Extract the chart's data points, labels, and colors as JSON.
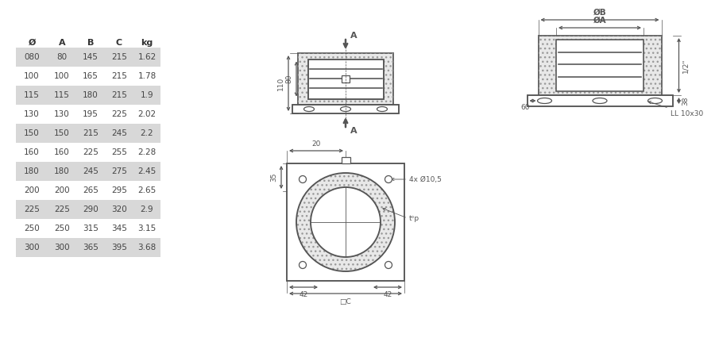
{
  "table": {
    "headers": [
      "Ø",
      "A",
      "B",
      "C",
      "kg"
    ],
    "rows": [
      [
        "080",
        "80",
        "145",
        "215",
        "1.62"
      ],
      [
        "100",
        "100",
        "165",
        "215",
        "1.78"
      ],
      [
        "115",
        "115",
        "180",
        "215",
        "1.9"
      ],
      [
        "130",
        "130",
        "195",
        "225",
        "2.02"
      ],
      [
        "150",
        "150",
        "215",
        "245",
        "2.2"
      ],
      [
        "160",
        "160",
        "225",
        "255",
        "2.28"
      ],
      [
        "180",
        "180",
        "245",
        "275",
        "2.45"
      ],
      [
        "200",
        "200",
        "265",
        "295",
        "2.65"
      ],
      [
        "225",
        "225",
        "290",
        "320",
        "2.9"
      ],
      [
        "250",
        "250",
        "315",
        "345",
        "3.15"
      ],
      [
        "300",
        "300",
        "365",
        "395",
        "3.68"
      ]
    ],
    "shaded_rows": [
      0,
      2,
      4,
      6,
      8,
      10
    ],
    "shade_color": "#d8d8d8",
    "text_color": "#444444",
    "header_color": "#333333"
  },
  "bg_color": "#ffffff",
  "line_color": "#555555",
  "hatch_color": "#aaaaaa"
}
